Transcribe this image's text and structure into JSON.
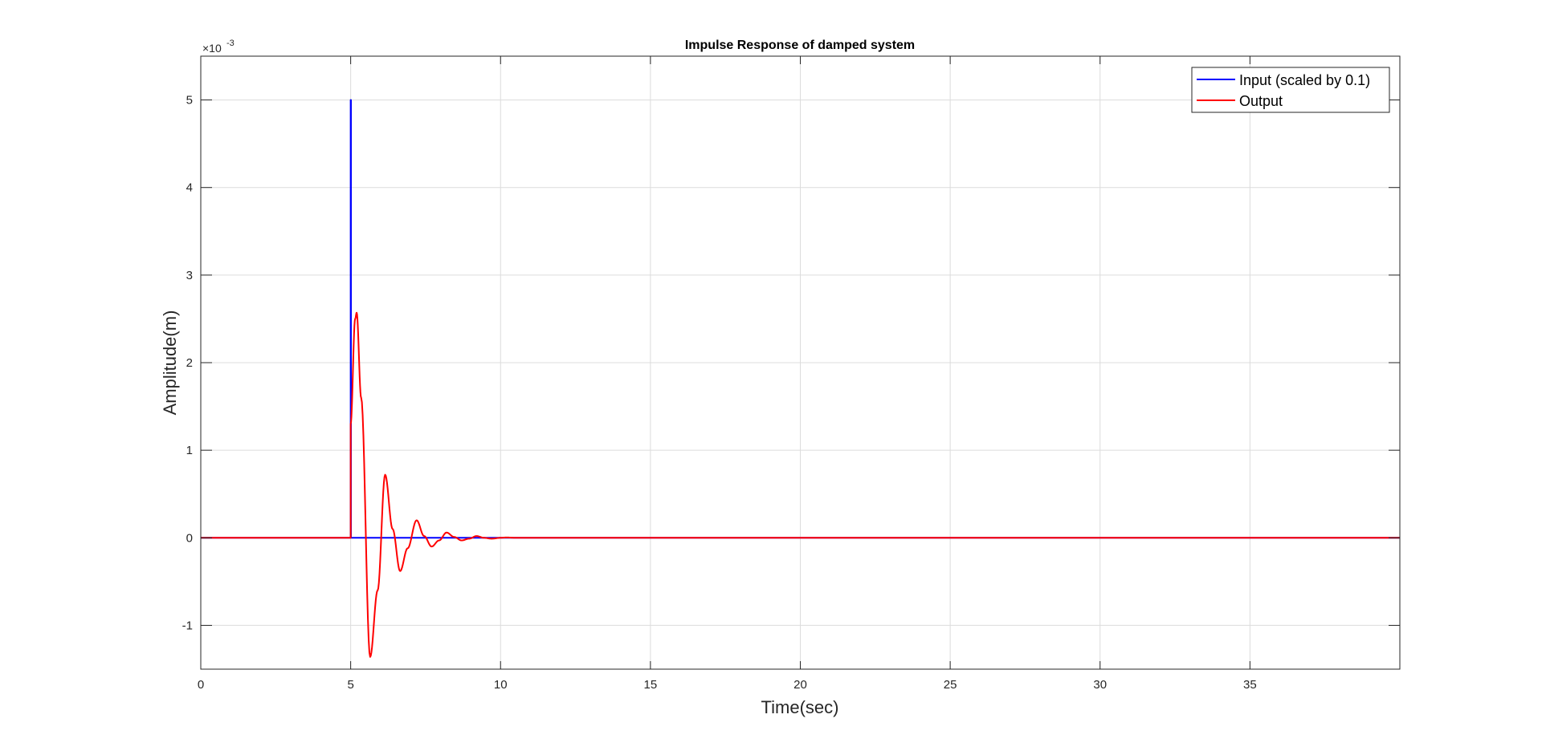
{
  "chart_data": {
    "type": "line",
    "title": "Impulse Response of damped system",
    "xlabel": "Time(sec)",
    "ylabel": "Amplitude(m)",
    "xlim": [
      0,
      40
    ],
    "ylim": [
      -1.5,
      5.5
    ],
    "xticks": [
      0,
      5,
      10,
      15,
      20,
      25,
      30,
      35
    ],
    "yticks": [
      -1,
      0,
      1,
      2,
      3,
      4,
      5
    ],
    "y_exponent": {
      "prefix": "×10",
      "power": "-3"
    },
    "grid": true,
    "legend_position": "top-right",
    "series": [
      {
        "name": "Input (scaled by 0.1)",
        "color": "#0000ff",
        "x": [
          0,
          5,
          5,
          5.01,
          5.01,
          40
        ],
        "y": [
          0,
          0,
          5,
          5,
          0,
          0
        ]
      },
      {
        "name": "Output",
        "color": "#ff0000",
        "x": [
          0,
          5,
          5.0,
          5.15,
          5.2,
          5.35,
          5.65,
          5.9,
          6.15,
          6.4,
          6.65,
          6.9,
          7.2,
          7.45,
          7.7,
          7.95,
          8.2,
          8.45,
          8.7,
          8.95,
          9.2,
          9.45,
          9.7,
          10.0,
          10.2,
          10.5,
          11.0,
          11.5,
          12.0,
          40
        ],
        "y": [
          0,
          0,
          1.3,
          2.5,
          2.57,
          1.6,
          -1.36,
          -0.6,
          0.72,
          0.1,
          -0.38,
          -0.12,
          0.2,
          0.02,
          -0.1,
          -0.03,
          0.06,
          0.01,
          -0.03,
          -0.01,
          0.02,
          0.0,
          -0.01,
          0.0,
          0.004,
          0.0,
          0.0,
          0.0,
          0.0,
          0.0
        ]
      }
    ]
  }
}
